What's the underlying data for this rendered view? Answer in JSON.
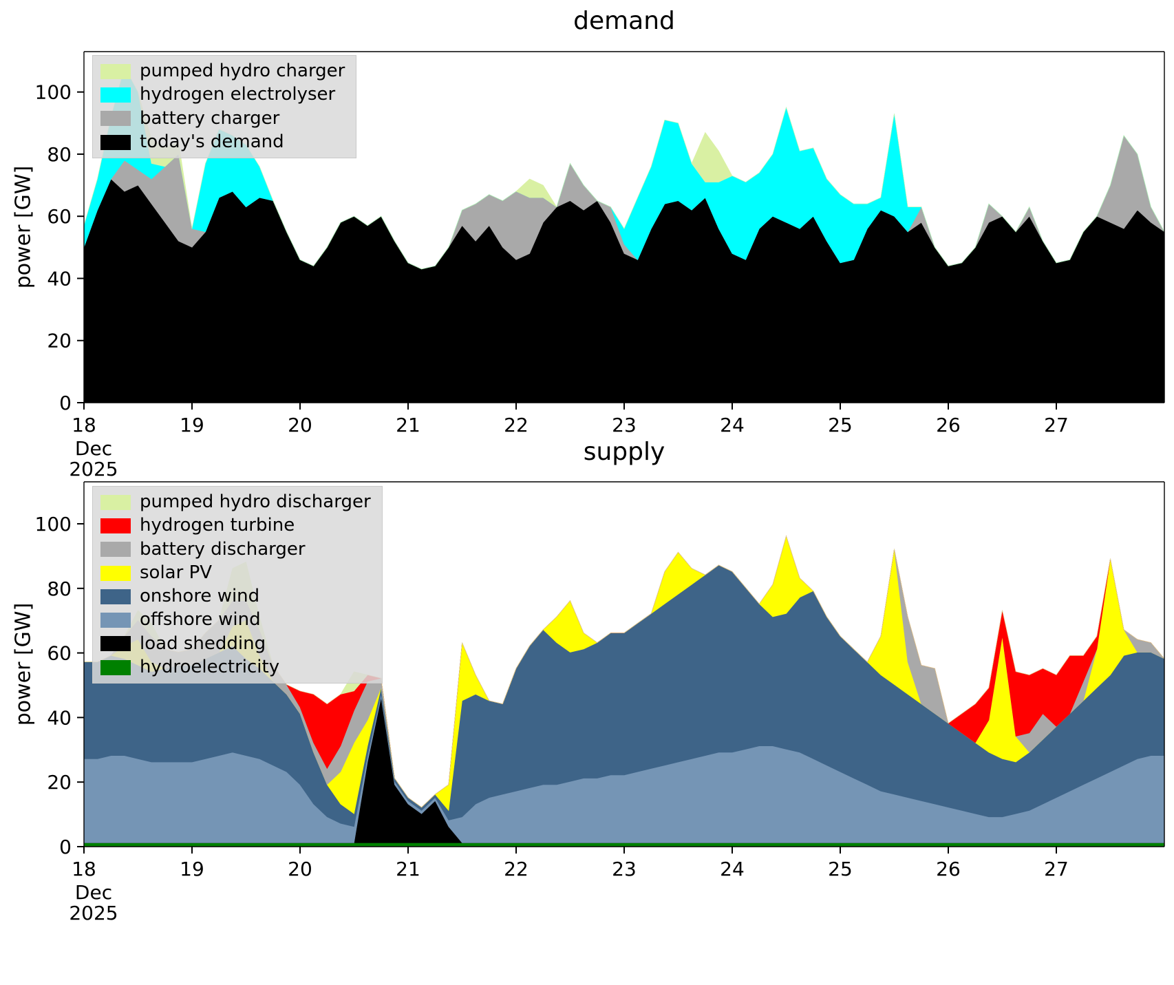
{
  "page": {
    "background": "#ffffff"
  },
  "chart_data": [
    {
      "type": "area",
      "stacked": true,
      "title": "demand",
      "ylabel": "power [GW]",
      "xlim": [
        18,
        28
      ],
      "ylim": [
        0,
        113
      ],
      "y_ticks": [
        0,
        20,
        40,
        60,
        80,
        100
      ],
      "x_ticks": [
        18,
        19,
        20,
        21,
        22,
        23,
        24,
        25,
        26,
        27
      ],
      "x_axis_note_lines": [
        "Dec",
        "2025"
      ],
      "x": {
        "start": 18,
        "step": 0.125,
        "count": 81,
        "unit": "day of Dec 2025"
      },
      "legend": [
        {
          "label": "pumped hydro charger",
          "color": "#d9f0a3"
        },
        {
          "label": "hydrogen electrolyser",
          "color": "#00ffff"
        },
        {
          "label": "battery charger",
          "color": "#a9a9a9"
        },
        {
          "label": "today's demand",
          "color": "#000000"
        }
      ],
      "series": [
        {
          "name": "todays-demand",
          "color": "#000000",
          "values": [
            50,
            62,
            72,
            68,
            70,
            64,
            58,
            52,
            50,
            55,
            66,
            68,
            63,
            66,
            65,
            55,
            46,
            44,
            50,
            58,
            60,
            57,
            60,
            52,
            45,
            43,
            44,
            50,
            57,
            52,
            57,
            50,
            46,
            48,
            58,
            63,
            65,
            62,
            65,
            58,
            48,
            46,
            56,
            64,
            65,
            62,
            66,
            56,
            48,
            46,
            56,
            60,
            58,
            56,
            60,
            52,
            45,
            46,
            56,
            62,
            60,
            55,
            58,
            50,
            44,
            45,
            50,
            58,
            60,
            55,
            60,
            52,
            45,
            46,
            55,
            60,
            58,
            56,
            62,
            58,
            55
          ]
        },
        {
          "name": "battery-charger",
          "color": "#a9a9a9",
          "values": [
            0,
            0,
            0,
            10,
            5,
            8,
            18,
            28,
            6,
            0,
            0,
            0,
            0,
            0,
            0,
            0,
            0,
            0,
            0,
            0,
            0,
            0,
            0,
            0,
            0,
            0,
            0,
            0,
            5,
            12,
            10,
            15,
            22,
            18,
            8,
            0,
            12,
            8,
            0,
            5,
            3,
            0,
            0,
            0,
            0,
            0,
            0,
            0,
            0,
            0,
            0,
            0,
            0,
            0,
            0,
            0,
            0,
            0,
            0,
            0,
            0,
            0,
            5,
            0,
            0,
            0,
            0,
            6,
            0,
            0,
            3,
            0,
            0,
            0,
            0,
            0,
            12,
            30,
            18,
            5,
            0
          ]
        },
        {
          "name": "hydrogen-electrolyser",
          "color": "#00ffff",
          "values": [
            7,
            10,
            20,
            30,
            25,
            5,
            0,
            0,
            0,
            22,
            22,
            18,
            20,
            10,
            0,
            0,
            0,
            0,
            0,
            0,
            0,
            0,
            0,
            0,
            0,
            0,
            0,
            0,
            0,
            0,
            0,
            0,
            0,
            0,
            0,
            0,
            0,
            0,
            0,
            0,
            5,
            20,
            20,
            27,
            25,
            15,
            5,
            15,
            25,
            25,
            18,
            20,
            37,
            25,
            22,
            20,
            22,
            18,
            8,
            4,
            33,
            8,
            0,
            0,
            0,
            0,
            0,
            0,
            0,
            0,
            0,
            0,
            0,
            0,
            0,
            0,
            0,
            0,
            0,
            0,
            0
          ]
        },
        {
          "name": "pumped-hydro-charger",
          "color": "#d9f0a3",
          "values": [
            0,
            0,
            0,
            0,
            0,
            8,
            6,
            4,
            0,
            0,
            0,
            0,
            0,
            0,
            0,
            0,
            0,
            0,
            0,
            0,
            0,
            0,
            0,
            0,
            0,
            0,
            0,
            0,
            0,
            0,
            0,
            0,
            0,
            6,
            4,
            0,
            0,
            0,
            0,
            0,
            0,
            0,
            0,
            0,
            0,
            0,
            16,
            10,
            0,
            0,
            0,
            0,
            0,
            0,
            0,
            0,
            0,
            0,
            0,
            0,
            0,
            0,
            0,
            0,
            0,
            0,
            0,
            0,
            0,
            0,
            0,
            0,
            0,
            0,
            0,
            0,
            0,
            0,
            0,
            0,
            0
          ]
        }
      ]
    },
    {
      "type": "area",
      "stacked": true,
      "title": "supply",
      "ylabel": "power [GW]",
      "xlim": [
        18,
        28
      ],
      "ylim": [
        0,
        113
      ],
      "y_ticks": [
        0,
        20,
        40,
        60,
        80,
        100
      ],
      "x_ticks": [
        18,
        19,
        20,
        21,
        22,
        23,
        24,
        25,
        26,
        27
      ],
      "x_axis_note_lines": [
        "Dec",
        "2025"
      ],
      "x": {
        "start": 18,
        "step": 0.125,
        "count": 81,
        "unit": "day of Dec 2025"
      },
      "legend": [
        {
          "label": "pumped hydro discharger",
          "color": "#d9f0a3"
        },
        {
          "label": "hydrogen turbine",
          "color": "#ff0000"
        },
        {
          "label": "battery discharger",
          "color": "#a9a9a9"
        },
        {
          "label": "solar PV",
          "color": "#ffff00"
        },
        {
          "label": "onshore wind",
          "color": "#3e6488"
        },
        {
          "label": "offshore wind",
          "color": "#7595b5"
        },
        {
          "label": "load shedding",
          "color": "#000000"
        },
        {
          "label": "hydroelectricity",
          "color": "#008000"
        }
      ],
      "series": [
        {
          "name": "hydroelectricity",
          "color": "#008000",
          "constant": 1.2
        },
        {
          "name": "load-shedding",
          "color": "#000000",
          "values": [
            0,
            0,
            0,
            0,
            0,
            0,
            0,
            0,
            0,
            0,
            0,
            0,
            0,
            0,
            0,
            0,
            0,
            0,
            0,
            0,
            0,
            25,
            45,
            18,
            12,
            9,
            13,
            5,
            0,
            0,
            0,
            0,
            0,
            0,
            0,
            0,
            0,
            0,
            0,
            0,
            0,
            0,
            0,
            0,
            0,
            0,
            0,
            0,
            0,
            0,
            0,
            0,
            0,
            0,
            0,
            0,
            0,
            0,
            0,
            0,
            0,
            0,
            0,
            0,
            0,
            0,
            0,
            0,
            0,
            0,
            0,
            0,
            0,
            0,
            0,
            0,
            0,
            0,
            0,
            0,
            0
          ]
        },
        {
          "name": "offshore-wind",
          "color": "#7595b5",
          "values": [
            26,
            26,
            27,
            27,
            26,
            25,
            25,
            25,
            25,
            26,
            27,
            28,
            27,
            26,
            24,
            22,
            18,
            12,
            8,
            6,
            5,
            2,
            1,
            1,
            1,
            1,
            1,
            2,
            8,
            12,
            14,
            15,
            16,
            17,
            18,
            18,
            19,
            20,
            20,
            21,
            21,
            22,
            23,
            24,
            25,
            26,
            27,
            28,
            28,
            29,
            30,
            30,
            29,
            28,
            26,
            24,
            22,
            20,
            18,
            16,
            15,
            14,
            13,
            12,
            11,
            10,
            9,
            8,
            8,
            9,
            10,
            12,
            14,
            16,
            18,
            20,
            22,
            24,
            26,
            27,
            27
          ]
        },
        {
          "name": "onshore-wind",
          "color": "#3e6488",
          "values": [
            30,
            30,
            31,
            30,
            29,
            28,
            29,
            30,
            30,
            31,
            32,
            33,
            30,
            28,
            26,
            24,
            22,
            16,
            10,
            6,
            4,
            3,
            2,
            1,
            1,
            1,
            1,
            3,
            36,
            34,
            30,
            28,
            38,
            44,
            48,
            44,
            40,
            40,
            42,
            44,
            44,
            46,
            48,
            50,
            52,
            54,
            56,
            58,
            56,
            50,
            44,
            40,
            42,
            48,
            52,
            46,
            42,
            40,
            38,
            36,
            34,
            32,
            30,
            28,
            26,
            24,
            22,
            20,
            18,
            16,
            18,
            20,
            22,
            24,
            26,
            28,
            30,
            34,
            33,
            32,
            30
          ]
        },
        {
          "name": "solar-pv",
          "color": "#ffff00",
          "values": [
            0,
            0,
            0,
            4,
            8,
            3,
            0,
            0,
            0,
            0,
            0,
            6,
            12,
            4,
            0,
            0,
            0,
            0,
            0,
            10,
            22,
            8,
            0,
            0,
            0,
            0,
            0,
            8,
            18,
            6,
            0,
            0,
            0,
            0,
            0,
            8,
            16,
            5,
            0,
            0,
            0,
            0,
            0,
            10,
            13,
            5,
            0,
            0,
            0,
            0,
            0,
            10,
            24,
            6,
            0,
            0,
            0,
            0,
            0,
            12,
            42,
            10,
            0,
            0,
            0,
            0,
            0,
            10,
            38,
            8,
            0,
            0,
            0,
            0,
            0,
            12,
            36,
            8,
            0,
            0,
            0
          ]
        },
        {
          "name": "battery-discharger",
          "color": "#a9a9a9",
          "values": [
            0,
            0,
            0,
            3,
            6,
            8,
            6,
            4,
            5,
            8,
            10,
            8,
            6,
            8,
            5,
            3,
            2,
            3,
            5,
            8,
            10,
            12,
            3,
            0,
            0,
            0,
            0,
            0,
            0,
            0,
            0,
            0,
            0,
            0,
            0,
            0,
            0,
            0,
            0,
            0,
            0,
            0,
            0,
            0,
            0,
            0,
            0,
            0,
            0,
            0,
            0,
            0,
            0,
            0,
            0,
            0,
            0,
            0,
            0,
            0,
            0,
            14,
            12,
            14,
            0,
            0,
            0,
            0,
            0,
            0,
            6,
            8,
            0,
            0,
            6,
            0,
            0,
            0,
            4,
            3,
            0
          ]
        },
        {
          "name": "hydrogen-turbine",
          "color": "#ff0000",
          "values": [
            0,
            0,
            0,
            0,
            0,
            0,
            0,
            0,
            0,
            0,
            0,
            0,
            0,
            0,
            0,
            0,
            5,
            15,
            20,
            16,
            6,
            2,
            0,
            0,
            0,
            0,
            0,
            0,
            0,
            0,
            0,
            0,
            0,
            0,
            0,
            0,
            0,
            0,
            0,
            0,
            0,
            0,
            0,
            0,
            0,
            0,
            0,
            0,
            0,
            0,
            0,
            0,
            0,
            0,
            0,
            0,
            0,
            0,
            0,
            0,
            0,
            0,
            0,
            0,
            0,
            6,
            12,
            10,
            8,
            20,
            18,
            14,
            16,
            18,
            8,
            4,
            0,
            0,
            0,
            0,
            0
          ]
        },
        {
          "name": "pumped-hydro-discharger",
          "color": "#d9f0a3",
          "values": [
            0,
            0,
            0,
            0,
            3,
            4,
            0,
            0,
            0,
            0,
            0,
            10,
            12,
            4,
            0,
            0,
            0,
            0,
            0,
            0,
            6,
            0,
            0,
            0,
            0,
            0,
            0,
            0,
            0,
            0,
            0,
            0,
            0,
            0,
            0,
            0,
            0,
            0,
            0,
            0,
            0,
            0,
            0,
            0,
            0,
            0,
            0,
            0,
            0,
            0,
            0,
            0,
            0,
            0,
            0,
            0,
            0,
            0,
            0,
            0,
            0,
            0,
            0,
            0,
            0,
            0,
            0,
            0,
            0,
            0,
            0,
            0,
            0,
            0,
            0,
            0,
            0,
            0,
            0,
            0,
            0
          ]
        }
      ]
    }
  ]
}
